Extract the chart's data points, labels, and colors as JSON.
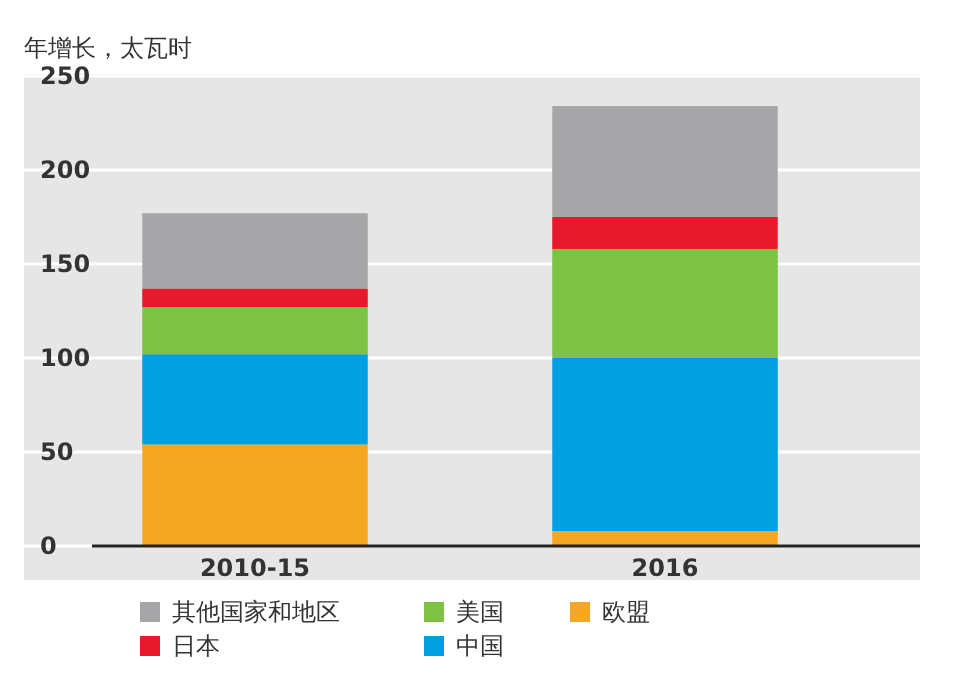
{
  "chart_data": {
    "type": "bar",
    "stacked": true,
    "ylabel": "年增长，太瓦时",
    "categories": [
      "2010-15",
      "2016"
    ],
    "series": [
      {
        "name": "欧盟",
        "color": "#f5a623",
        "values": [
          54,
          8
        ]
      },
      {
        "name": "中国",
        "color": "#009fdf",
        "values": [
          48,
          92
        ]
      },
      {
        "name": "美国",
        "color": "#7dc242",
        "values": [
          25,
          58
        ]
      },
      {
        "name": "日本",
        "color": "#e8192c",
        "values": [
          10,
          17
        ]
      },
      {
        "name": "其他国家和地区",
        "color": "#a6a6a8",
        "values": [
          40,
          59
        ]
      }
    ],
    "ylim": [
      0,
      250
    ],
    "yticks": [
      0,
      50,
      100,
      150,
      200,
      250
    ],
    "grid": "y",
    "legend": "bottom"
  }
}
